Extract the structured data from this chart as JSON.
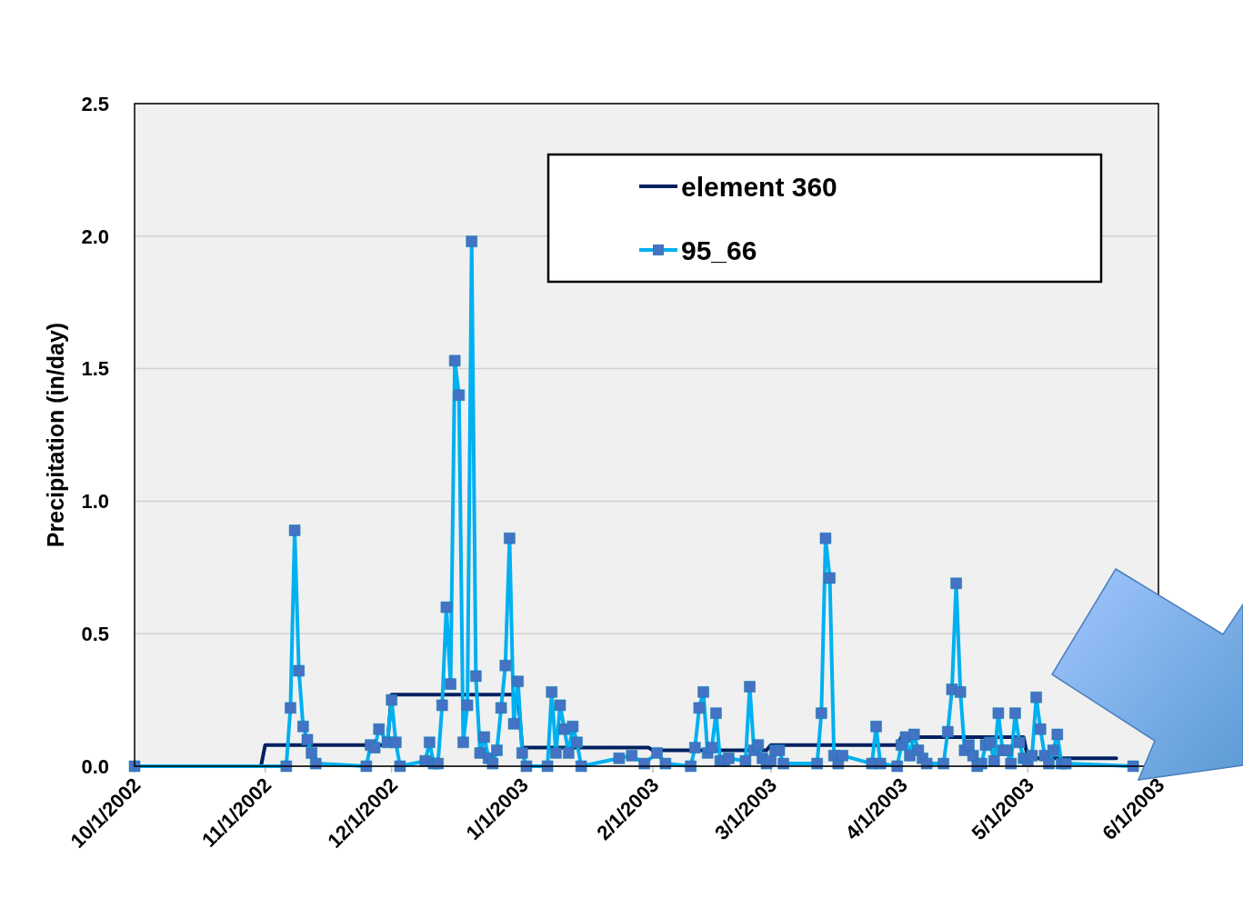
{
  "chart_data": {
    "type": "line",
    "ylabel": "Precipitation (in/day)",
    "xlim": [
      "2002-10-01",
      "2003-06-01"
    ],
    "xticks": [
      {
        "value": "2002-10-01",
        "label": "10/1/2002"
      },
      {
        "value": "2002-11-01",
        "label": "11/1/2002"
      },
      {
        "value": "2002-12-01",
        "label": "12/1/2002"
      },
      {
        "value": "2003-01-01",
        "label": "1/1/2003"
      },
      {
        "value": "2003-02-01",
        "label": "2/1/2003"
      },
      {
        "value": "2003-03-01",
        "label": "3/1/2003"
      },
      {
        "value": "2003-04-01",
        "label": "4/1/2003"
      },
      {
        "value": "2003-05-01",
        "label": "5/1/2003"
      },
      {
        "value": "2003-06-01",
        "label": "6/1/2003"
      }
    ],
    "ylim": [
      0,
      2.5
    ],
    "yticks": [
      {
        "value": 0,
        "label": "0.0"
      },
      0.5,
      {
        "value": 1,
        "label": "1.0"
      },
      1.5,
      {
        "value": 2,
        "label": "2.0"
      },
      2.5
    ],
    "grid": "y",
    "legend": "top right",
    "series": [
      {
        "name": "element 360",
        "color": "#002060",
        "marker": "none",
        "x": [
          "2002-10-01",
          "2002-10-31",
          "2002-11-01",
          "2002-11-30",
          "2002-12-01",
          "2002-12-31",
          "2003-01-01",
          "2003-01-31",
          "2003-02-01",
          "2003-02-28",
          "2003-03-01",
          "2003-03-31",
          "2003-04-01",
          "2003-04-30",
          "2003-05-01",
          "2003-05-22"
        ],
        "values": [
          0,
          0,
          0.08,
          0.08,
          0.27,
          0.27,
          0.07,
          0.07,
          0.06,
          0.06,
          0.08,
          0.08,
          0.11,
          0.11,
          0.03,
          0.03
        ]
      },
      {
        "name": "95_66",
        "color": "#00b0f0",
        "marker": "square",
        "x": [
          "2002-10-01",
          "2002-11-06",
          "2002-11-07",
          "2002-11-08",
          "2002-11-09",
          "2002-11-10",
          "2002-11-11",
          "2002-11-12",
          "2002-11-13",
          "2002-11-25",
          "2002-11-26",
          "2002-11-27",
          "2002-11-28",
          "2002-11-30",
          "2002-12-01",
          "2002-12-02",
          "2002-12-03",
          "2002-12-09",
          "2002-12-10",
          "2002-12-11",
          "2002-12-12",
          "2002-12-13",
          "2002-12-14",
          "2002-12-15",
          "2002-12-16",
          "2002-12-17",
          "2002-12-18",
          "2002-12-19",
          "2002-12-20",
          "2002-12-21",
          "2002-12-22",
          "2002-12-23",
          "2002-12-24",
          "2002-12-25",
          "2002-12-26",
          "2002-12-27",
          "2002-12-28",
          "2002-12-29",
          "2002-12-30",
          "2002-12-31",
          "2003-01-01",
          "2003-01-02",
          "2003-01-07",
          "2003-01-08",
          "2003-01-09",
          "2003-01-10",
          "2003-01-11",
          "2003-01-12",
          "2003-01-13",
          "2003-01-14",
          "2003-01-15",
          "2003-01-24",
          "2003-01-27",
          "2003-01-30",
          "2003-02-02",
          "2003-02-04",
          "2003-02-10",
          "2003-02-11",
          "2003-02-12",
          "2003-02-13",
          "2003-02-14",
          "2003-02-15",
          "2003-02-16",
          "2003-02-17",
          "2003-02-18",
          "2003-02-19",
          "2003-02-23",
          "2003-02-24",
          "2003-02-25",
          "2003-02-26",
          "2003-02-27",
          "2003-02-28",
          "2003-03-01",
          "2003-03-02",
          "2003-03-03",
          "2003-03-04",
          "2003-03-12",
          "2003-03-13",
          "2003-03-14",
          "2003-03-15",
          "2003-03-16",
          "2003-03-17",
          "2003-03-18",
          "2003-03-25",
          "2003-03-26",
          "2003-03-27",
          "2003-03-31",
          "2003-04-01",
          "2003-04-02",
          "2003-04-03",
          "2003-04-04",
          "2003-04-05",
          "2003-04-06",
          "2003-04-07",
          "2003-04-11",
          "2003-04-12",
          "2003-04-13",
          "2003-04-14",
          "2003-04-15",
          "2003-04-16",
          "2003-04-17",
          "2003-04-18",
          "2003-04-19",
          "2003-04-20",
          "2003-04-21",
          "2003-04-22",
          "2003-04-23",
          "2003-04-24",
          "2003-04-25",
          "2003-04-26",
          "2003-04-27",
          "2003-04-28",
          "2003-04-29",
          "2003-04-30",
          "2003-05-01",
          "2003-05-02",
          "2003-05-03",
          "2003-05-04",
          "2003-05-05",
          "2003-05-06",
          "2003-05-07",
          "2003-05-08",
          "2003-05-09",
          "2003-05-10",
          "2003-05-26"
        ],
        "values": [
          0,
          0,
          0.22,
          0.89,
          0.36,
          0.15,
          0.1,
          0.05,
          0.01,
          0,
          0.08,
          0.07,
          0.14,
          0.09,
          0.25,
          0.09,
          0,
          0.02,
          0.09,
          0.01,
          0.01,
          0.23,
          0.6,
          0.31,
          1.53,
          1.4,
          0.09,
          0.23,
          1.98,
          0.34,
          0.05,
          0.11,
          0.03,
          0.01,
          0.06,
          0.22,
          0.38,
          0.86,
          0.16,
          0.32,
          0.05,
          0,
          0,
          0.28,
          0.05,
          0.23,
          0.14,
          0.05,
          0.15,
          0.09,
          0,
          0.03,
          0.04,
          0.01,
          0.05,
          0.01,
          0,
          0.07,
          0.22,
          0.28,
          0.05,
          0.07,
          0.2,
          0.02,
          0.02,
          0.03,
          0.02,
          0.3,
          0.06,
          0.08,
          0.03,
          0.01,
          0.02,
          0.06,
          0.06,
          0.01,
          0.01,
          0.2,
          0.86,
          0.71,
          0.04,
          0.01,
          0.04,
          0.01,
          0.15,
          0.01,
          0,
          0.08,
          0.11,
          0.04,
          0.12,
          0.06,
          0.03,
          0.01,
          0.01,
          0.13,
          0.29,
          0.69,
          0.28,
          0.06,
          0.08,
          0.04,
          0,
          0.01,
          0.08,
          0.09,
          0.02,
          0.2,
          0.06,
          0.06,
          0.01,
          0.2,
          0.09,
          0.03,
          0.02,
          0.04,
          0.26,
          0.14,
          0.04,
          0.01,
          0.06,
          0.12,
          0.01,
          0.01,
          0
        ]
      }
    ]
  }
}
